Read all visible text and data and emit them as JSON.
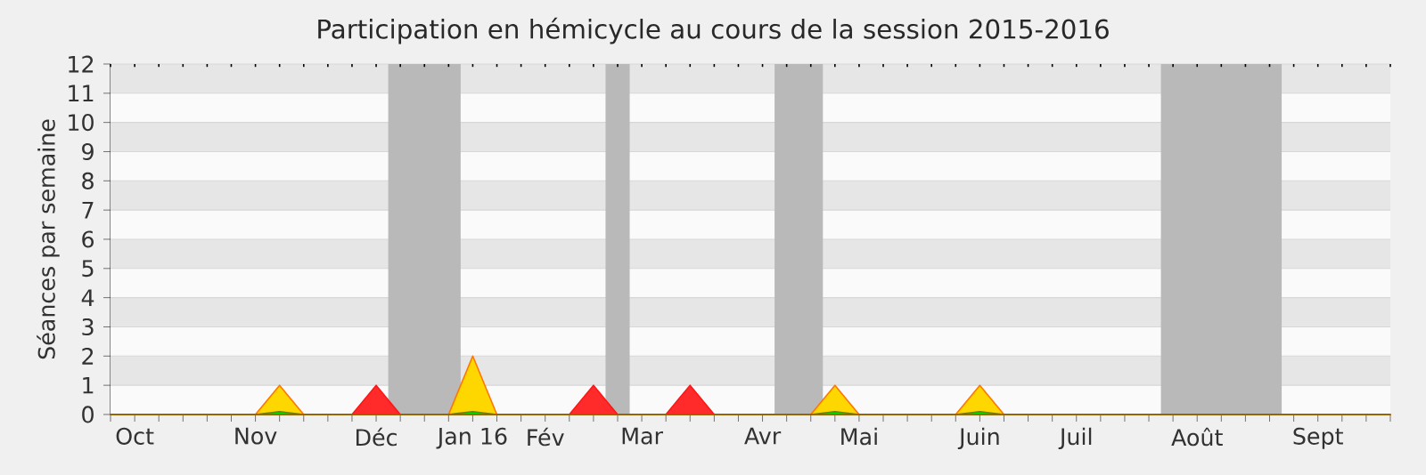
{
  "chart_data": {
    "type": "area",
    "title": "Participation en hémicycle au cours de la session 2015-2016",
    "ylabel": "Séances par semaine",
    "x": [
      "2015-10-01",
      "2015-10-08",
      "2015-10-15",
      "2015-10-22",
      "2015-10-29",
      "2015-11-05",
      "2015-11-12",
      "2015-11-19",
      "2015-11-26",
      "2015-12-03",
      "2015-12-10",
      "2015-12-17",
      "2015-12-24",
      "2015-12-31",
      "2016-01-07",
      "2016-01-14",
      "2016-01-21",
      "2016-01-28",
      "2016-02-04",
      "2016-02-11",
      "2016-02-18",
      "2016-02-25",
      "2016-03-03",
      "2016-03-10",
      "2016-03-17",
      "2016-03-24",
      "2016-03-31",
      "2016-04-07",
      "2016-04-14",
      "2016-04-21",
      "2016-04-28",
      "2016-05-05",
      "2016-05-12",
      "2016-05-19",
      "2016-05-26",
      "2016-06-02",
      "2016-06-09",
      "2016-06-16",
      "2016-06-23",
      "2016-06-30",
      "2016-07-07",
      "2016-07-14",
      "2016-07-21",
      "2016-07-28",
      "2016-08-04",
      "2016-08-11",
      "2016-08-18",
      "2016-08-25",
      "2016-09-01",
      "2016-09-08",
      "2016-09-15",
      "2016-09-22",
      "2016-09-29",
      "2016-10-06"
    ],
    "xlim": [
      "2015-10-01",
      "2016-10-06"
    ],
    "xticks": [
      {
        "value": "2015-10-01",
        "label": null
      },
      {
        "value": "2015-10-08",
        "label": "Oct"
      },
      {
        "value": "2015-10-15",
        "label": null
      },
      {
        "value": "2015-10-22",
        "label": null
      },
      {
        "value": "2015-10-29",
        "label": null
      },
      {
        "value": "2015-11-05",
        "label": null
      },
      {
        "value": "2015-11-12",
        "label": "Nov"
      },
      {
        "value": "2015-11-19",
        "label": null
      },
      {
        "value": "2015-11-26",
        "label": null
      },
      {
        "value": "2015-12-03",
        "label": null
      },
      {
        "value": "2015-12-10",
        "label": null
      },
      {
        "value": "2015-12-17",
        "label": "Déc"
      },
      {
        "value": "2015-12-24",
        "label": null
      },
      {
        "value": "2015-12-31",
        "label": null
      },
      {
        "value": "2016-01-07",
        "label": null
      },
      {
        "value": "2016-01-14",
        "label": "Jan 16"
      },
      {
        "value": "2016-01-21",
        "label": null
      },
      {
        "value": "2016-01-28",
        "label": null
      },
      {
        "value": "2016-02-04",
        "label": "Fév"
      },
      {
        "value": "2016-02-11",
        "label": null
      },
      {
        "value": "2016-02-18",
        "label": null
      },
      {
        "value": "2016-02-25",
        "label": null
      },
      {
        "value": "2016-03-03",
        "label": "Mar"
      },
      {
        "value": "2016-03-10",
        "label": null
      },
      {
        "value": "2016-03-17",
        "label": null
      },
      {
        "value": "2016-03-24",
        "label": null
      },
      {
        "value": "2016-03-31",
        "label": null
      },
      {
        "value": "2016-04-07",
        "label": "Avr"
      },
      {
        "value": "2016-04-14",
        "label": null
      },
      {
        "value": "2016-04-21",
        "label": null
      },
      {
        "value": "2016-04-28",
        "label": null
      },
      {
        "value": "2016-05-05",
        "label": "Mai"
      },
      {
        "value": "2016-05-12",
        "label": null
      },
      {
        "value": "2016-05-19",
        "label": null
      },
      {
        "value": "2016-05-26",
        "label": null
      },
      {
        "value": "2016-06-02",
        "label": null
      },
      {
        "value": "2016-06-09",
        "label": "Juin"
      },
      {
        "value": "2016-06-16",
        "label": null
      },
      {
        "value": "2016-06-23",
        "label": null
      },
      {
        "value": "2016-06-30",
        "label": null
      },
      {
        "value": "2016-07-07",
        "label": "Juil"
      },
      {
        "value": "2016-07-14",
        "label": null
      },
      {
        "value": "2016-07-21",
        "label": null
      },
      {
        "value": "2016-07-28",
        "label": null
      },
      {
        "value": "2016-08-04",
        "label": null
      },
      {
        "value": "2016-08-11",
        "label": "Août"
      },
      {
        "value": "2016-08-18",
        "label": null
      },
      {
        "value": "2016-08-25",
        "label": null
      },
      {
        "value": "2016-09-01",
        "label": null
      },
      {
        "value": "2016-09-08",
        "label": null
      },
      {
        "value": "2016-09-15",
        "label": "Sept"
      },
      {
        "value": "2016-09-22",
        "label": null
      },
      {
        "value": "2016-09-29",
        "label": null
      },
      {
        "value": "2016-10-06",
        "label": null
      }
    ],
    "ylim": [
      0,
      12
    ],
    "yticks": [
      0,
      1,
      2,
      3,
      4,
      5,
      6,
      7,
      8,
      9,
      10,
      11,
      12
    ],
    "grid": "y",
    "bands": [
      {
        "axis": "x",
        "from": "2015-12-20T12:00",
        "to": "2016-01-10T12:00",
        "color": "#b9b9b9"
      },
      {
        "axis": "x",
        "from": "2016-02-21T12:00",
        "to": "2016-02-28T12:00",
        "color": "#b9b9b9"
      },
      {
        "axis": "x",
        "from": "2016-04-10T12:00",
        "to": "2016-04-24T12:00",
        "color": "#b9b9b9"
      },
      {
        "axis": "x",
        "from": "2016-07-31T12:00",
        "to": "2016-09-04T12:00",
        "color": "#b9b9b9"
      }
    ],
    "series": [
      {
        "color": "#ffd700",
        "values": [
          0,
          0,
          0,
          0,
          0,
          0,
          0,
          1,
          0,
          0,
          0,
          0,
          0,
          0,
          0,
          2,
          0,
          0,
          0,
          0,
          0,
          0,
          0,
          0,
          0,
          0,
          0,
          0,
          0,
          0,
          1,
          0,
          0,
          0,
          0,
          0,
          1,
          0,
          0,
          0,
          0,
          0,
          0,
          0,
          0,
          0,
          0,
          0,
          0,
          0,
          0,
          0,
          0,
          0
        ]
      },
      {
        "color": "#ff2a2a",
        "values": [
          0,
          0,
          0,
          0,
          0,
          0,
          0,
          0,
          0,
          0,
          0,
          1,
          0,
          0,
          0,
          0,
          0,
          0,
          0,
          0,
          1,
          0,
          0,
          0,
          1,
          0,
          0,
          0,
          0,
          0,
          0,
          0,
          0,
          0,
          0,
          0,
          0,
          0,
          0,
          0,
          0,
          0,
          0,
          0,
          0,
          0,
          0,
          0,
          0,
          0,
          0,
          0,
          0,
          0
        ]
      },
      {
        "color": "#00dd00",
        "values": [
          0,
          0,
          0,
          0,
          0,
          0,
          0,
          0.1,
          0,
          0,
          0,
          0,
          0,
          0,
          0,
          0.1,
          0,
          0,
          0,
          0,
          0,
          0,
          0,
          0,
          0,
          0,
          0,
          0,
          0,
          0,
          0.1,
          0,
          0,
          0,
          0,
          0,
          0.1,
          0,
          0,
          0,
          0,
          0,
          0,
          0,
          0,
          0,
          0,
          0,
          0,
          0,
          0,
          0,
          0,
          0
        ]
      }
    ]
  }
}
